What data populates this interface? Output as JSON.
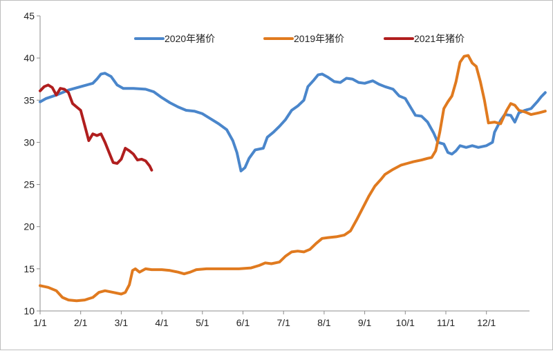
{
  "chart_data": {
    "type": "line",
    "title": "",
    "xlabel": "",
    "ylabel": "",
    "ylim": [
      10,
      45
    ],
    "yticks": [
      "10",
      "15",
      "20",
      "25",
      "30",
      "35",
      "40",
      "45"
    ],
    "xlim": [
      0,
      12
    ],
    "xticks": [
      "1/1",
      "2/1",
      "3/1",
      "4/1",
      "5/1",
      "6/1",
      "7/1",
      "8/1",
      "9/1",
      "10/1",
      "11/1",
      "12/1"
    ],
    "grid": false,
    "legend_position": "top",
    "series": [
      {
        "name": "2020年猪价",
        "color": "#4a86cb",
        "points": [
          [
            0.0,
            34.8
          ],
          [
            0.15,
            35.2
          ],
          [
            0.4,
            35.6
          ],
          [
            0.7,
            36.2
          ],
          [
            1.0,
            36.6
          ],
          [
            1.3,
            37.0
          ],
          [
            1.4,
            37.5
          ],
          [
            1.5,
            38.1
          ],
          [
            1.6,
            38.2
          ],
          [
            1.75,
            37.8
          ],
          [
            1.9,
            36.8
          ],
          [
            2.05,
            36.4
          ],
          [
            2.3,
            36.4
          ],
          [
            2.6,
            36.3
          ],
          [
            2.8,
            36.0
          ],
          [
            3.0,
            35.3
          ],
          [
            3.2,
            34.7
          ],
          [
            3.4,
            34.2
          ],
          [
            3.6,
            33.8
          ],
          [
            3.8,
            33.7
          ],
          [
            4.0,
            33.4
          ],
          [
            4.2,
            32.8
          ],
          [
            4.4,
            32.2
          ],
          [
            4.6,
            31.5
          ],
          [
            4.75,
            30.2
          ],
          [
            4.85,
            28.8
          ],
          [
            4.95,
            26.6
          ],
          [
            5.05,
            27.0
          ],
          [
            5.15,
            28.1
          ],
          [
            5.3,
            29.1
          ],
          [
            5.5,
            29.3
          ],
          [
            5.6,
            30.6
          ],
          [
            5.75,
            31.2
          ],
          [
            5.9,
            31.9
          ],
          [
            6.05,
            32.7
          ],
          [
            6.2,
            33.8
          ],
          [
            6.35,
            34.3
          ],
          [
            6.5,
            35.0
          ],
          [
            6.6,
            36.6
          ],
          [
            6.75,
            37.4
          ],
          [
            6.85,
            38.0
          ],
          [
            6.95,
            38.1
          ],
          [
            7.1,
            37.7
          ],
          [
            7.25,
            37.2
          ],
          [
            7.4,
            37.1
          ],
          [
            7.55,
            37.6
          ],
          [
            7.7,
            37.5
          ],
          [
            7.85,
            37.1
          ],
          [
            8.0,
            37.0
          ],
          [
            8.2,
            37.3
          ],
          [
            8.35,
            36.9
          ],
          [
            8.5,
            36.6
          ],
          [
            8.7,
            36.3
          ],
          [
            8.85,
            35.5
          ],
          [
            9.0,
            35.2
          ],
          [
            9.15,
            34.0
          ],
          [
            9.25,
            33.2
          ],
          [
            9.4,
            33.1
          ],
          [
            9.55,
            32.4
          ],
          [
            9.7,
            31.1
          ],
          [
            9.8,
            30.0
          ],
          [
            9.95,
            29.8
          ],
          [
            10.05,
            28.8
          ],
          [
            10.15,
            28.6
          ],
          [
            10.25,
            29.0
          ],
          [
            10.35,
            29.6
          ],
          [
            10.5,
            29.4
          ],
          [
            10.65,
            29.6
          ],
          [
            10.8,
            29.4
          ],
          [
            11.0,
            29.6
          ],
          [
            11.15,
            30.0
          ],
          [
            11.2,
            31.2
          ],
          [
            11.35,
            32.6
          ],
          [
            11.45,
            33.3
          ],
          [
            11.6,
            33.2
          ],
          [
            11.7,
            32.4
          ],
          [
            11.8,
            33.5
          ],
          [
            11.95,
            33.8
          ],
          [
            12.1,
            34.0
          ],
          [
            12.25,
            34.8
          ],
          [
            12.35,
            35.4
          ],
          [
            12.45,
            35.9
          ]
        ]
      },
      {
        "name": "2019年猪价",
        "color": "#e07a1f",
        "points": [
          [
            0.0,
            13.0
          ],
          [
            0.2,
            12.8
          ],
          [
            0.4,
            12.4
          ],
          [
            0.55,
            11.6
          ],
          [
            0.7,
            11.3
          ],
          [
            0.9,
            11.2
          ],
          [
            1.1,
            11.3
          ],
          [
            1.3,
            11.6
          ],
          [
            1.45,
            12.2
          ],
          [
            1.6,
            12.4
          ],
          [
            1.8,
            12.2
          ],
          [
            2.0,
            12.0
          ],
          [
            2.1,
            12.2
          ],
          [
            2.2,
            13.1
          ],
          [
            2.28,
            14.8
          ],
          [
            2.35,
            15.0
          ],
          [
            2.45,
            14.6
          ],
          [
            2.6,
            15.0
          ],
          [
            2.75,
            14.9
          ],
          [
            3.0,
            14.9
          ],
          [
            3.2,
            14.8
          ],
          [
            3.4,
            14.6
          ],
          [
            3.55,
            14.4
          ],
          [
            3.7,
            14.6
          ],
          [
            3.85,
            14.9
          ],
          [
            4.1,
            15.0
          ],
          [
            4.5,
            15.0
          ],
          [
            4.9,
            15.0
          ],
          [
            5.2,
            15.1
          ],
          [
            5.4,
            15.4
          ],
          [
            5.55,
            15.7
          ],
          [
            5.7,
            15.6
          ],
          [
            5.9,
            15.8
          ],
          [
            6.05,
            16.5
          ],
          [
            6.2,
            17.0
          ],
          [
            6.35,
            17.1
          ],
          [
            6.5,
            17.0
          ],
          [
            6.65,
            17.3
          ],
          [
            6.8,
            18.0
          ],
          [
            6.95,
            18.6
          ],
          [
            7.1,
            18.7
          ],
          [
            7.3,
            18.8
          ],
          [
            7.5,
            19.0
          ],
          [
            7.65,
            19.5
          ],
          [
            7.8,
            20.8
          ],
          [
            7.95,
            22.2
          ],
          [
            8.1,
            23.6
          ],
          [
            8.25,
            24.8
          ],
          [
            8.4,
            25.6
          ],
          [
            8.5,
            26.2
          ],
          [
            8.7,
            26.8
          ],
          [
            8.9,
            27.3
          ],
          [
            9.05,
            27.5
          ],
          [
            9.2,
            27.7
          ],
          [
            9.4,
            27.9
          ],
          [
            9.55,
            28.1
          ],
          [
            9.65,
            28.2
          ],
          [
            9.75,
            29.0
          ],
          [
            9.85,
            31.2
          ],
          [
            9.95,
            34.0
          ],
          [
            10.05,
            34.8
          ],
          [
            10.15,
            35.5
          ],
          [
            10.25,
            37.2
          ],
          [
            10.35,
            39.5
          ],
          [
            10.45,
            40.2
          ],
          [
            10.55,
            40.3
          ],
          [
            10.65,
            39.4
          ],
          [
            10.75,
            39.0
          ],
          [
            10.85,
            37.2
          ],
          [
            10.95,
            35.0
          ],
          [
            11.05,
            32.3
          ],
          [
            11.2,
            32.4
          ],
          [
            11.35,
            32.2
          ],
          [
            11.5,
            33.8
          ],
          [
            11.6,
            34.6
          ],
          [
            11.7,
            34.4
          ],
          [
            11.8,
            33.8
          ],
          [
            11.95,
            33.6
          ],
          [
            12.1,
            33.3
          ],
          [
            12.3,
            33.5
          ],
          [
            12.45,
            33.7
          ]
        ]
      },
      {
        "name": "2021年猪价",
        "color": "#b01e1e",
        "points": [
          [
            0.0,
            36.1
          ],
          [
            0.1,
            36.6
          ],
          [
            0.2,
            36.8
          ],
          [
            0.3,
            36.5
          ],
          [
            0.4,
            35.6
          ],
          [
            0.5,
            36.4
          ],
          [
            0.6,
            36.3
          ],
          [
            0.7,
            35.9
          ],
          [
            0.8,
            34.6
          ],
          [
            0.9,
            34.2
          ],
          [
            1.0,
            33.8
          ],
          [
            1.1,
            32.0
          ],
          [
            1.2,
            30.2
          ],
          [
            1.3,
            31.0
          ],
          [
            1.4,
            30.8
          ],
          [
            1.5,
            31.0
          ],
          [
            1.6,
            30.0
          ],
          [
            1.7,
            28.8
          ],
          [
            1.8,
            27.6
          ],
          [
            1.9,
            27.5
          ],
          [
            2.0,
            28.0
          ],
          [
            2.1,
            29.3
          ],
          [
            2.2,
            29.0
          ],
          [
            2.3,
            28.6
          ],
          [
            2.4,
            27.9
          ],
          [
            2.5,
            28.0
          ],
          [
            2.6,
            27.8
          ],
          [
            2.7,
            27.2
          ],
          [
            2.75,
            26.7
          ]
        ]
      }
    ]
  }
}
